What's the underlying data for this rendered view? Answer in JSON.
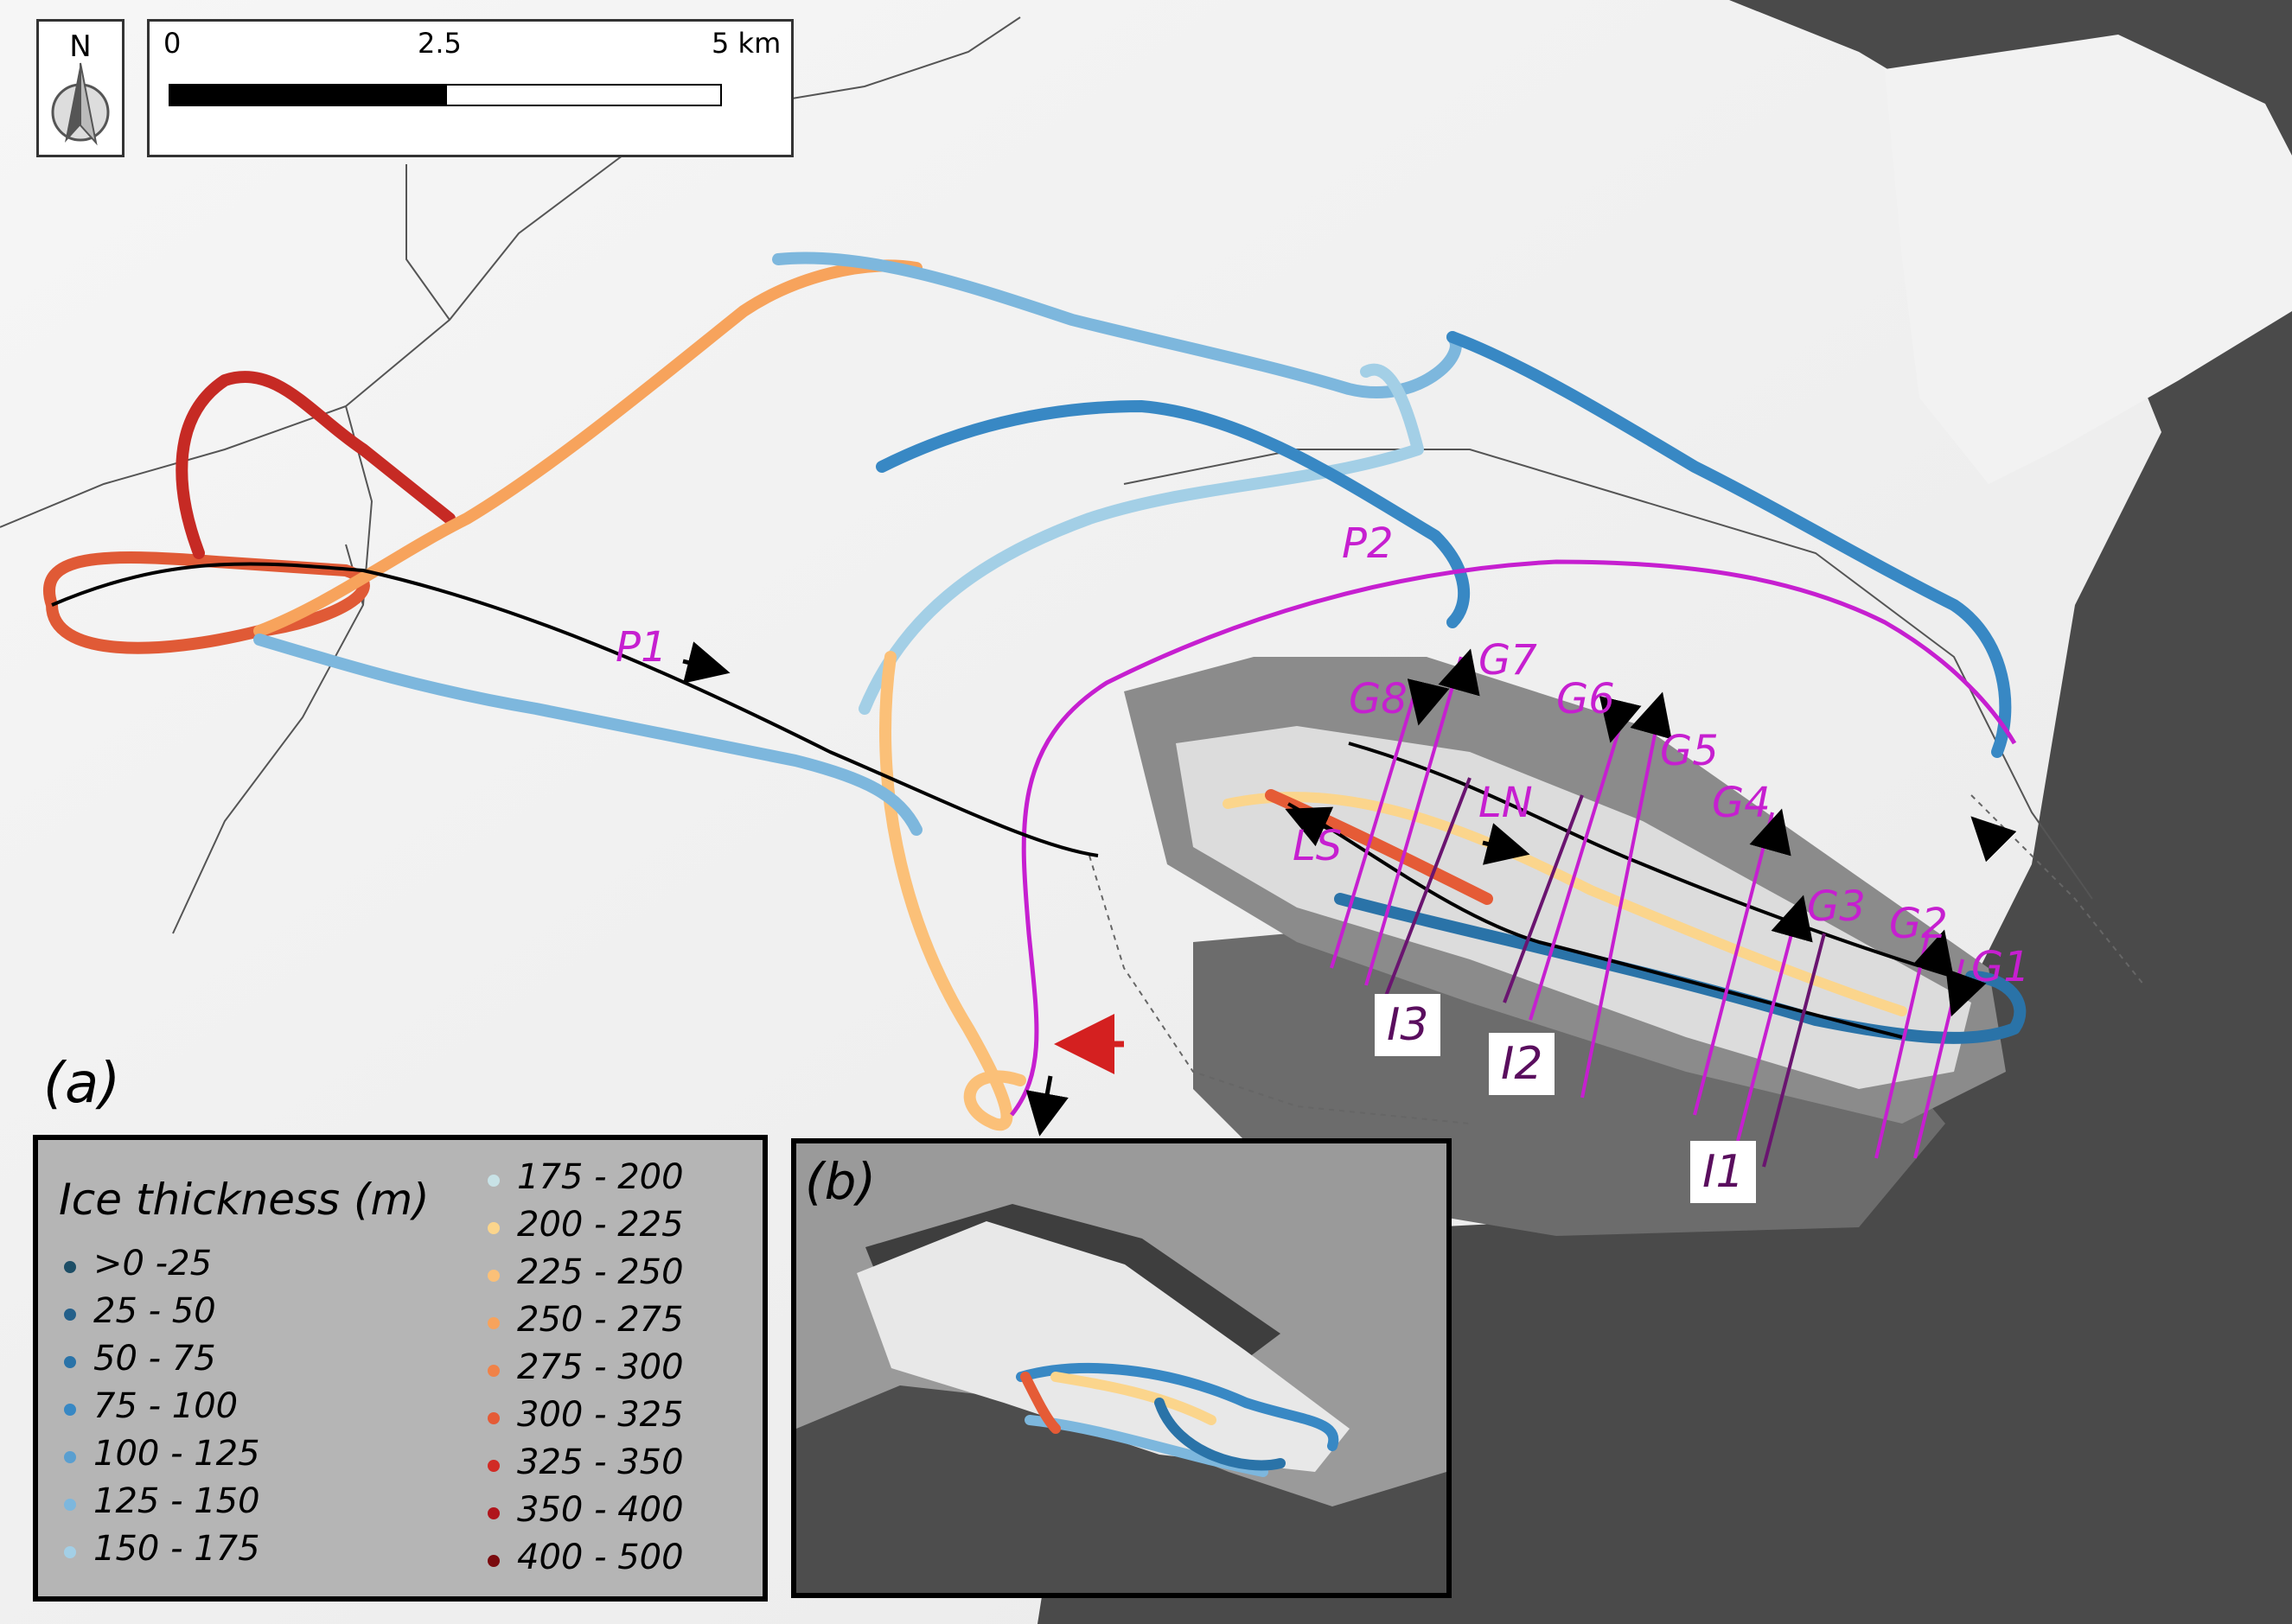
{
  "north_arrow": {
    "label": "N"
  },
  "scale_bar": {
    "ticks": [
      "0",
      "2.5",
      "5 km"
    ]
  },
  "panel_labels": {
    "a": "(a)",
    "b": "(b)"
  },
  "profiles": {
    "P1": "P1",
    "P2": "P2",
    "LS": "LS",
    "LN": "LN",
    "G": [
      "G1",
      "G2",
      "G3",
      "G4",
      "G5",
      "G6",
      "G7",
      "G8"
    ],
    "I": [
      "I1",
      "I2",
      "I3"
    ]
  },
  "legend": {
    "title": "Ice thickness (m)",
    "classes": [
      {
        "label": ">0 -25",
        "color": "#1d4e66"
      },
      {
        "label": "25 - 50",
        "color": "#24608a"
      },
      {
        "label": "50 - 75",
        "color": "#2a73a8"
      },
      {
        "label": "75 - 100",
        "color": "#3888c4"
      },
      {
        "label": " 100 - 125",
        "color": "#5a9fd0"
      },
      {
        "label": " 125 - 150",
        "color": "#7db7dd"
      },
      {
        "label": " 150 - 175",
        "color": "#a3cfe6"
      },
      {
        "label": " 175 - 200",
        "color": "#c8e2e6"
      },
      {
        "label": " 200 - 225",
        "color": "#fbd58c"
      },
      {
        "label": " 225 - 250",
        "color": "#fbc078"
      },
      {
        "label": " 250 - 275",
        "color": "#f7a35c"
      },
      {
        "label": " 275 - 300",
        "color": "#f08248"
      },
      {
        "label": " 300 - 325",
        "color": "#e55b36"
      },
      {
        "label": " 325 - 350",
        "color": "#d12b25"
      },
      {
        "label": "350 - 400",
        "color": "#b0151c"
      },
      {
        "label": "400 - 500",
        "color": "#7a0a0e"
      }
    ]
  },
  "colors": {
    "profile_magenta": "#c61fd0",
    "profile_purple": "#6a1470",
    "arrow_red": "#d42020"
  }
}
